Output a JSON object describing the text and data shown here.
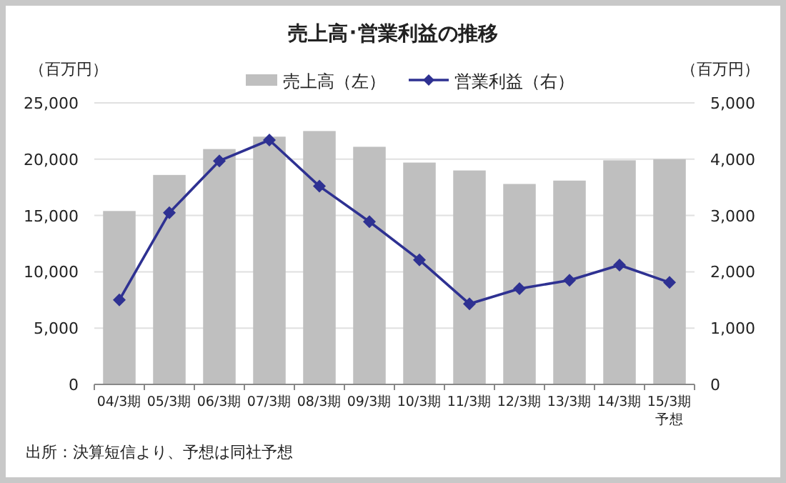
{
  "chart_data": {
    "type": "bar",
    "title": "売上高･営業利益の推移",
    "ylabel": "（百万円）",
    "y2label": "（百万円）",
    "categories": [
      "04/3期",
      "05/3期",
      "06/3期",
      "07/3期",
      "08/3期",
      "09/3期",
      "10/3期",
      "11/3期",
      "12/3期",
      "13/3期",
      "14/3期",
      "15/3期予想"
    ],
    "series": [
      {
        "name": "売上高（左）",
        "color": "#bfbfbf",
        "values": [
          15400,
          18600,
          20900,
          22000,
          22500,
          21100,
          19700,
          19000,
          17800,
          18100,
          19900,
          20000
        ]
      },
      {
        "name": "営業利益（右）",
        "type": "line",
        "axis": "y2",
        "color": "#2e3192",
        "marker": "diamond",
        "values": [
          1500,
          3050,
          3970,
          4340,
          3520,
          2890,
          2210,
          1430,
          1700,
          1850,
          2120,
          1810
        ]
      }
    ],
    "ylim": [
      0,
      25000
    ],
    "yticks": [
      {
        "value": 0,
        "label": "0"
      },
      {
        "value": 5000,
        "label": "5,000"
      },
      {
        "value": 10000,
        "label": "10,000"
      },
      {
        "value": 15000,
        "label": "15,000"
      },
      {
        "value": 20000,
        "label": "20,000"
      },
      {
        "value": 25000,
        "label": "25,000"
      }
    ],
    "y2lim": [
      0,
      5000
    ],
    "y2ticks": [
      {
        "value": 0,
        "label": "0"
      },
      {
        "value": 1000,
        "label": "1,000"
      },
      {
        "value": 2000,
        "label": "2,000"
      },
      {
        "value": 3000,
        "label": "3,000"
      },
      {
        "value": 4000,
        "label": "4,000"
      },
      {
        "value": 5000,
        "label": "5,000"
      }
    ],
    "grid": "y",
    "legend": "top",
    "annotations": [
      "出所：決算短信より、予想は同社予想"
    ]
  }
}
